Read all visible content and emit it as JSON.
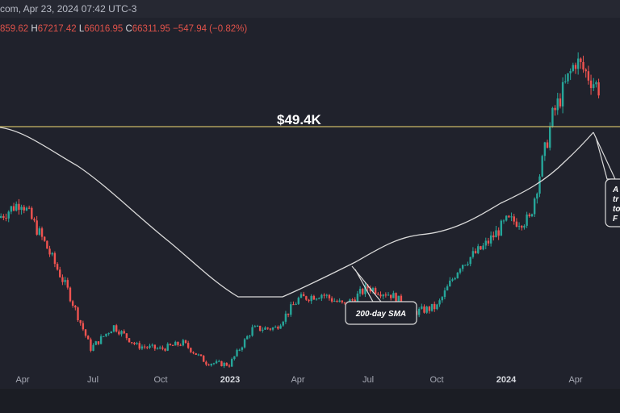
{
  "header": {
    "text": "com, Apr 23, 2024 07:42 UTC-3"
  },
  "ohlc": {
    "open": "859.62",
    "high_key": "H",
    "high": "67217.42",
    "low_key": "L",
    "low": "66016.95",
    "close_key": "C",
    "close": "66311.95",
    "change": "−547.94 (−0.82%)"
  },
  "colors": {
    "background": "#20222c",
    "up": "#26a69a",
    "down": "#ef5350",
    "level_line": "#c9b866",
    "sma_line": "#d9d9d9"
  },
  "chart_data": {
    "type": "candlestick",
    "title": "",
    "level_line": {
      "value": 49400,
      "label": "$49.4K"
    },
    "x_ticks": [
      "Apr",
      "Jul",
      "Oct",
      "2023",
      "Apr",
      "Jul",
      "Oct",
      "2024",
      "Apr"
    ],
    "x_range": [
      "2022-02",
      "2024-04"
    ],
    "y_range_approx": [
      14000,
      75000
    ],
    "candles_weekly_close_approx": [
      {
        "d": "2022-02",
        "c": 43000
      },
      {
        "d": "2022-03",
        "c": 46000
      },
      {
        "d": "2022-04",
        "c": 38500
      },
      {
        "d": "2022-05",
        "c": 30000
      },
      {
        "d": "2022-06",
        "c": 19500
      },
      {
        "d": "2022-07",
        "c": 23500
      },
      {
        "d": "2022-08",
        "c": 20000
      },
      {
        "d": "2022-09",
        "c": 19400
      },
      {
        "d": "2022-10",
        "c": 20500
      },
      {
        "d": "2022-11",
        "c": 17000
      },
      {
        "d": "2022-12",
        "c": 16600
      },
      {
        "d": "2023-01",
        "c": 23000
      },
      {
        "d": "2023-02",
        "c": 23200
      },
      {
        "d": "2023-03",
        "c": 28400
      },
      {
        "d": "2023-04",
        "c": 29300
      },
      {
        "d": "2023-05",
        "c": 27200
      },
      {
        "d": "2023-06",
        "c": 30500
      },
      {
        "d": "2023-07",
        "c": 29200
      },
      {
        "d": "2023-08",
        "c": 26000
      },
      {
        "d": "2023-09",
        "c": 27000
      },
      {
        "d": "2023-10",
        "c": 34500
      },
      {
        "d": "2023-11",
        "c": 37700
      },
      {
        "d": "2023-12",
        "c": 42300
      },
      {
        "d": "2024-01",
        "c": 42600
      },
      {
        "d": "2024-02",
        "c": 61200
      },
      {
        "d": "2024-03",
        "c": 71300
      },
      {
        "d": "2024-04",
        "c": 66300
      }
    ],
    "series": [
      {
        "name": "200-day SMA",
        "values_approx": [
          {
            "d": "2022-02",
            "v": 49500
          },
          {
            "d": "2022-04",
            "v": 47000
          },
          {
            "d": "2022-06",
            "v": 40000
          },
          {
            "d": "2022-08",
            "v": 33000
          },
          {
            "d": "2022-10",
            "v": 27000
          },
          {
            "d": "2022-12",
            "v": 21000
          },
          {
            "d": "2023-02",
            "v": 20000
          },
          {
            "d": "2023-04",
            "v": 21500
          },
          {
            "d": "2023-06",
            "v": 25000
          },
          {
            "d": "2023-08",
            "v": 28000
          },
          {
            "d": "2023-10",
            "v": 29000
          },
          {
            "d": "2023-12",
            "v": 33000
          },
          {
            "d": "2024-02",
            "v": 40000
          },
          {
            "d": "2024-04",
            "v": 49400
          }
        ]
      }
    ],
    "annotations": [
      "$49.4K",
      "200-day SMA",
      "A",
      "tr",
      "to",
      "F"
    ]
  }
}
